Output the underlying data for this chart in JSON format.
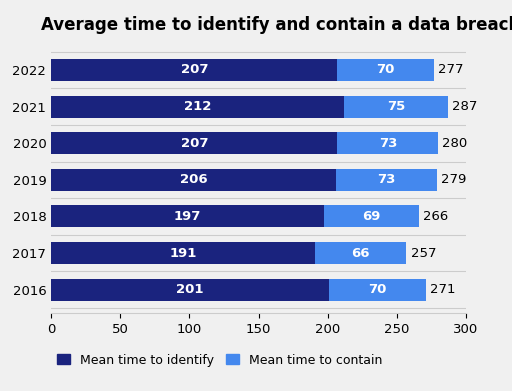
{
  "title": "Average time to identify and contain a data breach",
  "years": [
    "2022",
    "2021",
    "2020",
    "2019",
    "2018",
    "2017",
    "2016"
  ],
  "identify": [
    207,
    212,
    207,
    206,
    197,
    191,
    201
  ],
  "contain": [
    70,
    75,
    73,
    73,
    69,
    66,
    70
  ],
  "totals": [
    277,
    287,
    280,
    279,
    266,
    257,
    271
  ],
  "color_identify": "#1a237e",
  "color_contain": "#4488ee",
  "background_color": "#f0f0f0",
  "bar_height": 0.6,
  "xlim": [
    0,
    300
  ],
  "xticks": [
    0,
    50,
    100,
    150,
    200,
    250,
    300
  ],
  "legend_identify": "Mean time to identify",
  "legend_contain": "Mean time to contain",
  "title_fontsize": 12,
  "tick_fontsize": 9.5,
  "label_fontsize": 9.5
}
